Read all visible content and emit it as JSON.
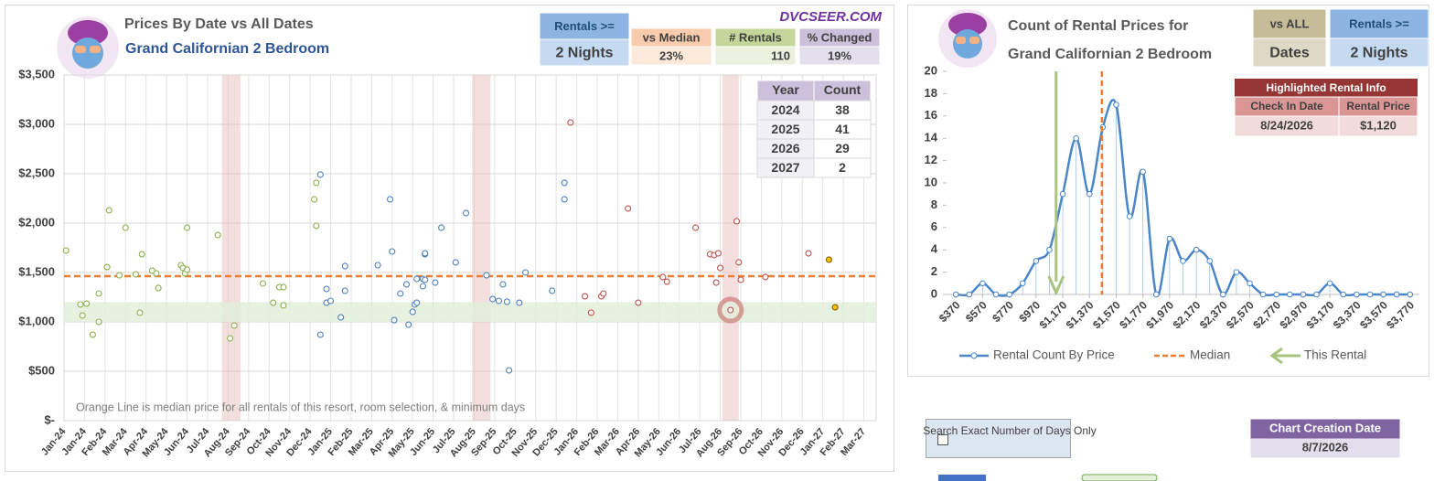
{
  "left_panel": {
    "title": "Prices By Date vs All Dates",
    "subtitle": "Grand Californian 2 Bedroom",
    "brand": "DVCSEER.COM",
    "stats": [
      {
        "label": "Rentals >=",
        "value": "2 Nights"
      },
      {
        "label": "vs Median",
        "value": "23%"
      },
      {
        "label": "# Rentals",
        "value": 110
      },
      {
        "label": "% Changed",
        "value": "19%"
      }
    ],
    "year_table": {
      "header": [
        "Year",
        "Count"
      ],
      "rows": [
        [
          2024,
          38
        ],
        [
          2025,
          41
        ],
        [
          2026,
          29
        ],
        [
          2027,
          2
        ]
      ]
    },
    "note": "Orange Line is median price for all rentals of this resort, room selection, & minimum days"
  },
  "right_panel": {
    "title": "Count of Rental Prices for",
    "subtitle": "Grand Californian 2 Bedroom",
    "stats": [
      {
        "label": "vs ALL",
        "value": "Dates"
      },
      {
        "label": "Rentals >=",
        "value": "2 Nights"
      }
    ],
    "highlight_table": {
      "title": "Highlighted Rental Info",
      "header": [
        "Check In Date",
        "Rental Price"
      ],
      "row": [
        "8/24/2026",
        "$1,120"
      ]
    }
  },
  "controls": {
    "checkbox_label": "Search Exact Number of Days Only",
    "creation_date_label": "Chart Creation Date",
    "creation_date": "8/7/2026"
  },
  "chart_data": [
    {
      "type": "scatter",
      "xlim": [
        0,
        39.6
      ],
      "xticks": [
        {
          "value": 0,
          "label": "Jan-24"
        },
        {
          "value": 1,
          "label": "Jan-24"
        },
        {
          "value": 2,
          "label": "Feb-24"
        },
        {
          "value": 3,
          "label": "Mar-24"
        },
        {
          "value": 4,
          "label": "Apr-24"
        },
        {
          "value": 5,
          "label": "May-24"
        },
        {
          "value": 6,
          "label": "Jun-24"
        },
        {
          "value": 7,
          "label": "Jul-24"
        },
        {
          "value": 8,
          "label": "Aug-24"
        },
        {
          "value": 9,
          "label": "Sep-24"
        },
        {
          "value": 10,
          "label": "Oct-24"
        },
        {
          "value": 11,
          "label": "Nov-24"
        },
        {
          "value": 12,
          "label": "Dec-24"
        },
        {
          "value": 13,
          "label": "Jan-25"
        },
        {
          "value": 14,
          "label": "Feb-25"
        },
        {
          "value": 15,
          "label": "Mar-25"
        },
        {
          "value": 16,
          "label": "Apr-25"
        },
        {
          "value": 17,
          "label": "May-25"
        },
        {
          "value": 18,
          "label": "Jun-25"
        },
        {
          "value": 19,
          "label": "Jul-25"
        },
        {
          "value": 20,
          "label": "Aug-25"
        },
        {
          "value": 21,
          "label": "Sep-25"
        },
        {
          "value": 22,
          "label": "Oct-25"
        },
        {
          "value": 23,
          "label": "Nov-25"
        },
        {
          "value": 24,
          "label": "Dec-25"
        },
        {
          "value": 25,
          "label": "Jan-26"
        },
        {
          "value": 26,
          "label": "Feb-26"
        },
        {
          "value": 27,
          "label": "Mar-26"
        },
        {
          "value": 28,
          "label": "Apr-26"
        },
        {
          "value": 29,
          "label": "May-26"
        },
        {
          "value": 30,
          "label": "Jun-26"
        },
        {
          "value": 31,
          "label": "Jul-26"
        },
        {
          "value": 32,
          "label": "Aug-26"
        },
        {
          "value": 33,
          "label": "Sep-26"
        },
        {
          "value": 34,
          "label": "Oct-26"
        },
        {
          "value": 35,
          "label": "Nov-26"
        },
        {
          "value": 36,
          "label": "Dec-26"
        },
        {
          "value": 37,
          "label": "Jan-27"
        },
        {
          "value": 38,
          "label": "Feb-27"
        },
        {
          "value": 39,
          "label": "Mar-27"
        }
      ],
      "ylim": [
        0,
        3500
      ],
      "yticks": [
        {
          "value": 0,
          "label": "$-"
        },
        {
          "value": 500,
          "label": "$500"
        },
        {
          "value": 1000,
          "label": "$1,000"
        },
        {
          "value": 1500,
          "label": "$1,500"
        },
        {
          "value": 2000,
          "label": "$2,000"
        },
        {
          "value": 2500,
          "label": "$2,500"
        },
        {
          "value": 3000,
          "label": "$3,000"
        },
        {
          "value": 3500,
          "label": "$3,500"
        }
      ],
      "grid": true,
      "median": {
        "value": 1463,
        "color": "#ed7d31"
      },
      "band": {
        "range": [
          1000,
          1200
        ],
        "color": "#e2efda"
      },
      "shaded_ranges": [
        [
          7.7,
          8.6
        ],
        [
          19.9,
          20.8
        ],
        [
          32.1,
          32.9
        ]
      ],
      "highlight": {
        "x": 32.5,
        "y": 1120,
        "color": "#c0504d"
      },
      "series": [
        {
          "color": "#8cb04a",
          "x": [
            0.1,
            0.8,
            1.1,
            0.9,
            1.4,
            1.7,
            1.7,
            2.1,
            2.2,
            2.7,
            3.0,
            3.5,
            3.7,
            3.8,
            4.3,
            4.5,
            4.6,
            5.7,
            5.8,
            5.9,
            6.0,
            6.0,
            7.5,
            8.1,
            8.3,
            9.7,
            10.2,
            10.5,
            10.7,
            10.7,
            12.2,
            12.3,
            12.3
          ],
          "values": [
            1722,
            1176,
            1185,
            1065,
            870,
            1000,
            1287,
            1555,
            2130,
            1472,
            1954,
            1481,
            1093,
            1685,
            1519,
            1491,
            1343,
            1574,
            1546,
            1491,
            1528,
            1954,
            1880,
            833,
            963,
            1389,
            1194,
            1352,
            1167,
            1352,
            2241,
            2408,
            1972
          ]
        },
        {
          "color": "#4f81bd",
          "x": [
            12.5,
            12.5,
            12.8,
            12.8,
            13.0,
            13.5,
            13.7,
            13.7,
            15.3,
            15.9,
            16.0,
            16.1,
            16.4,
            16.7,
            16.8,
            17.0,
            17.1,
            17.2,
            17.2,
            17.5,
            17.5,
            17.6,
            17.6,
            17.6,
            18.1,
            18.4,
            19.1,
            19.6,
            20.6,
            20.9,
            21.2,
            21.4,
            21.6,
            21.7,
            22.2,
            22.5,
            23.8,
            24.4,
            24.4
          ],
          "values": [
            2491,
            870,
            1194,
            1333,
            1213,
            1046,
            1315,
            1565,
            1574,
            2241,
            1713,
            1018,
            1287,
            1380,
            972,
            1102,
            1176,
            1194,
            1435,
            1435,
            1361,
            1426,
            1685,
            1694,
            1398,
            1954,
            1602,
            2102,
            1472,
            1231,
            1213,
            1380,
            1204,
            509,
            1194,
            1500,
            1315,
            2241,
            2408
          ]
        },
        {
          "color": "#c0504d",
          "x": [
            24.7,
            25.4,
            25.7,
            26.2,
            26.3,
            27.5,
            28.0,
            29.2,
            29.4,
            30.8,
            31.5,
            31.7,
            31.9,
            31.8,
            32.0,
            32.5,
            32.8,
            32.9,
            33.0,
            34.2,
            36.3
          ],
          "values": [
            3019,
            1259,
            1093,
            1259,
            1287,
            2148,
            1194,
            1454,
            1407,
            1954,
            1685,
            1676,
            1694,
            1398,
            1546,
            1120,
            2019,
            1602,
            1426,
            1454,
            1694
          ]
        },
        {
          "color": "#ffc000",
          "filled": true,
          "x": [
            37.3,
            37.6
          ],
          "values": [
            1630,
            1148
          ]
        }
      ]
    },
    {
      "type": "line",
      "x": [
        370,
        470,
        570,
        670,
        770,
        870,
        970,
        1070,
        1170,
        1270,
        1370,
        1470,
        1570,
        1670,
        1770,
        1870,
        1970,
        2070,
        2170,
        2270,
        2370,
        2470,
        2570,
        2670,
        2770,
        2870,
        2970,
        3070,
        3170,
        3270,
        3370,
        3470,
        3570,
        3670,
        3770
      ],
      "xlim": [
        300,
        3840
      ],
      "xticks": [
        {
          "value": 370,
          "label": "$370"
        },
        {
          "value": 570,
          "label": "$570"
        },
        {
          "value": 770,
          "label": "$770"
        },
        {
          "value": 970,
          "label": "$970"
        },
        {
          "value": 1170,
          "label": "$1,170"
        },
        {
          "value": 1370,
          "label": "$1,370"
        },
        {
          "value": 1570,
          "label": "$1,570"
        },
        {
          "value": 1770,
          "label": "$1,770"
        },
        {
          "value": 1970,
          "label": "$1,970"
        },
        {
          "value": 2170,
          "label": "$2,170"
        },
        {
          "value": 2370,
          "label": "$2,370"
        },
        {
          "value": 2570,
          "label": "$2,570"
        },
        {
          "value": 2770,
          "label": "$2,770"
        },
        {
          "value": 2970,
          "label": "$2,970"
        },
        {
          "value": 3170,
          "label": "$3,170"
        },
        {
          "value": 3370,
          "label": "$3,370"
        },
        {
          "value": 3570,
          "label": "$3,570"
        },
        {
          "value": 3770,
          "label": "$3,770"
        }
      ],
      "ylim": [
        0,
        20
      ],
      "yticks": [
        0,
        2,
        4,
        6,
        8,
        10,
        12,
        14,
        16,
        18,
        20
      ],
      "grid": false,
      "legend": "bottom",
      "series": [
        {
          "name": "Rental Count By Price",
          "color": "#4a86c8",
          "values": [
            0,
            0,
            1,
            0,
            0,
            1,
            3,
            4,
            9,
            14,
            9,
            15,
            17,
            7,
            11,
            0,
            5,
            3,
            4,
            3,
            0,
            2,
            1,
            0,
            0,
            0,
            0,
            0,
            1,
            0,
            0,
            0,
            0,
            0,
            0
          ]
        }
      ],
      "median": {
        "name": "Median",
        "value": 1463,
        "color": "#ed7d31"
      },
      "this_rental": {
        "name": "This Rental",
        "value": 1120,
        "color": "#a9c47f"
      }
    }
  ]
}
